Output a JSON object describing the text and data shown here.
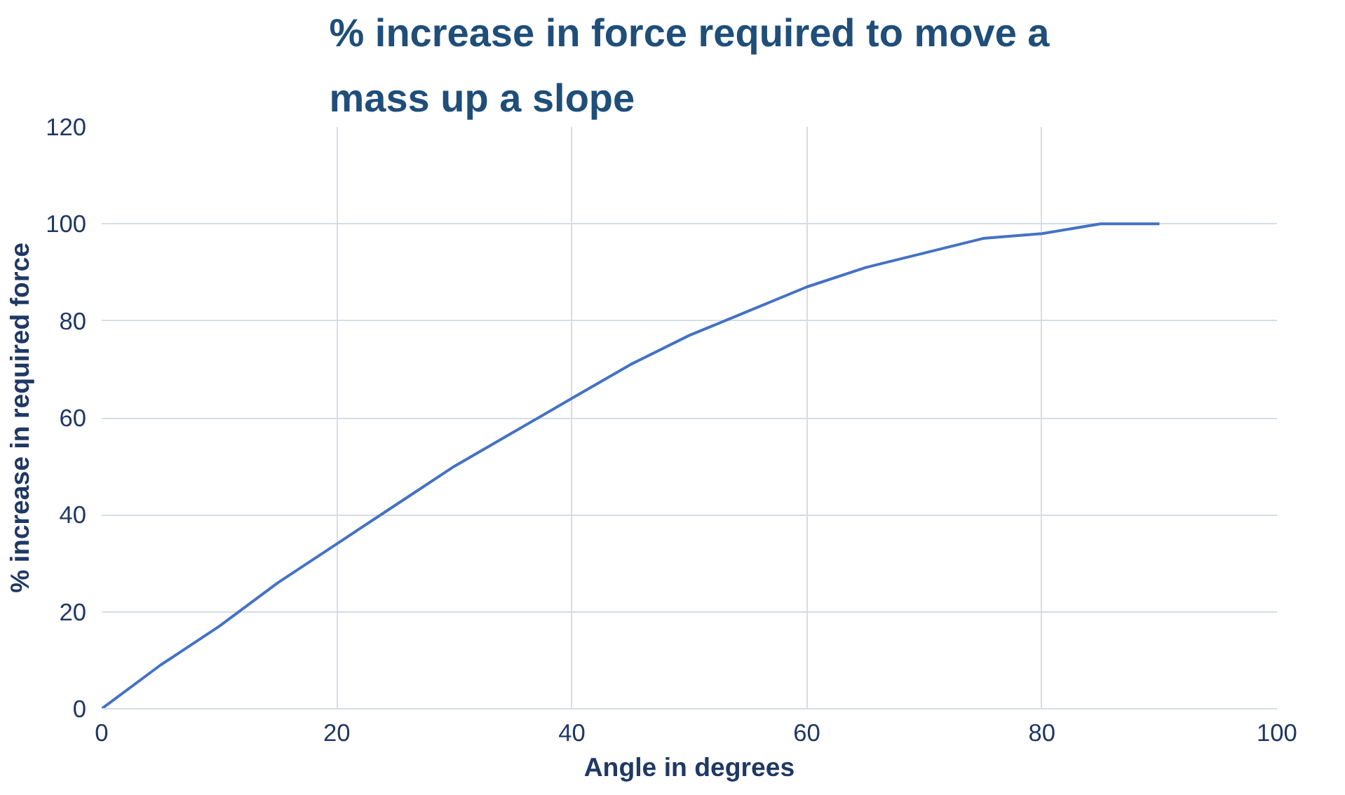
{
  "chart_data": {
    "type": "line",
    "title": "% increase in force required to move a mass up a slope",
    "xlabel": "Angle in degrees",
    "ylabel": "% increase in required force",
    "x": [
      0,
      5,
      10,
      15,
      20,
      25,
      30,
      35,
      40,
      45,
      50,
      55,
      60,
      65,
      70,
      75,
      80,
      85,
      90
    ],
    "series": [
      {
        "color": "#4472c4",
        "values": [
          0,
          9,
          17,
          26,
          34,
          42,
          50,
          57,
          64,
          71,
          77,
          82,
          87,
          91,
          94,
          97,
          98,
          100,
          100
        ]
      }
    ],
    "xlim": [
      0,
      100
    ],
    "xticks": [
      0,
      20,
      40,
      60,
      80,
      100
    ],
    "ylim": [
      0,
      120
    ],
    "yticks": [
      0,
      20,
      40,
      60,
      80,
      100,
      120
    ],
    "grid": true,
    "marker": "none",
    "line_style": "solid"
  }
}
